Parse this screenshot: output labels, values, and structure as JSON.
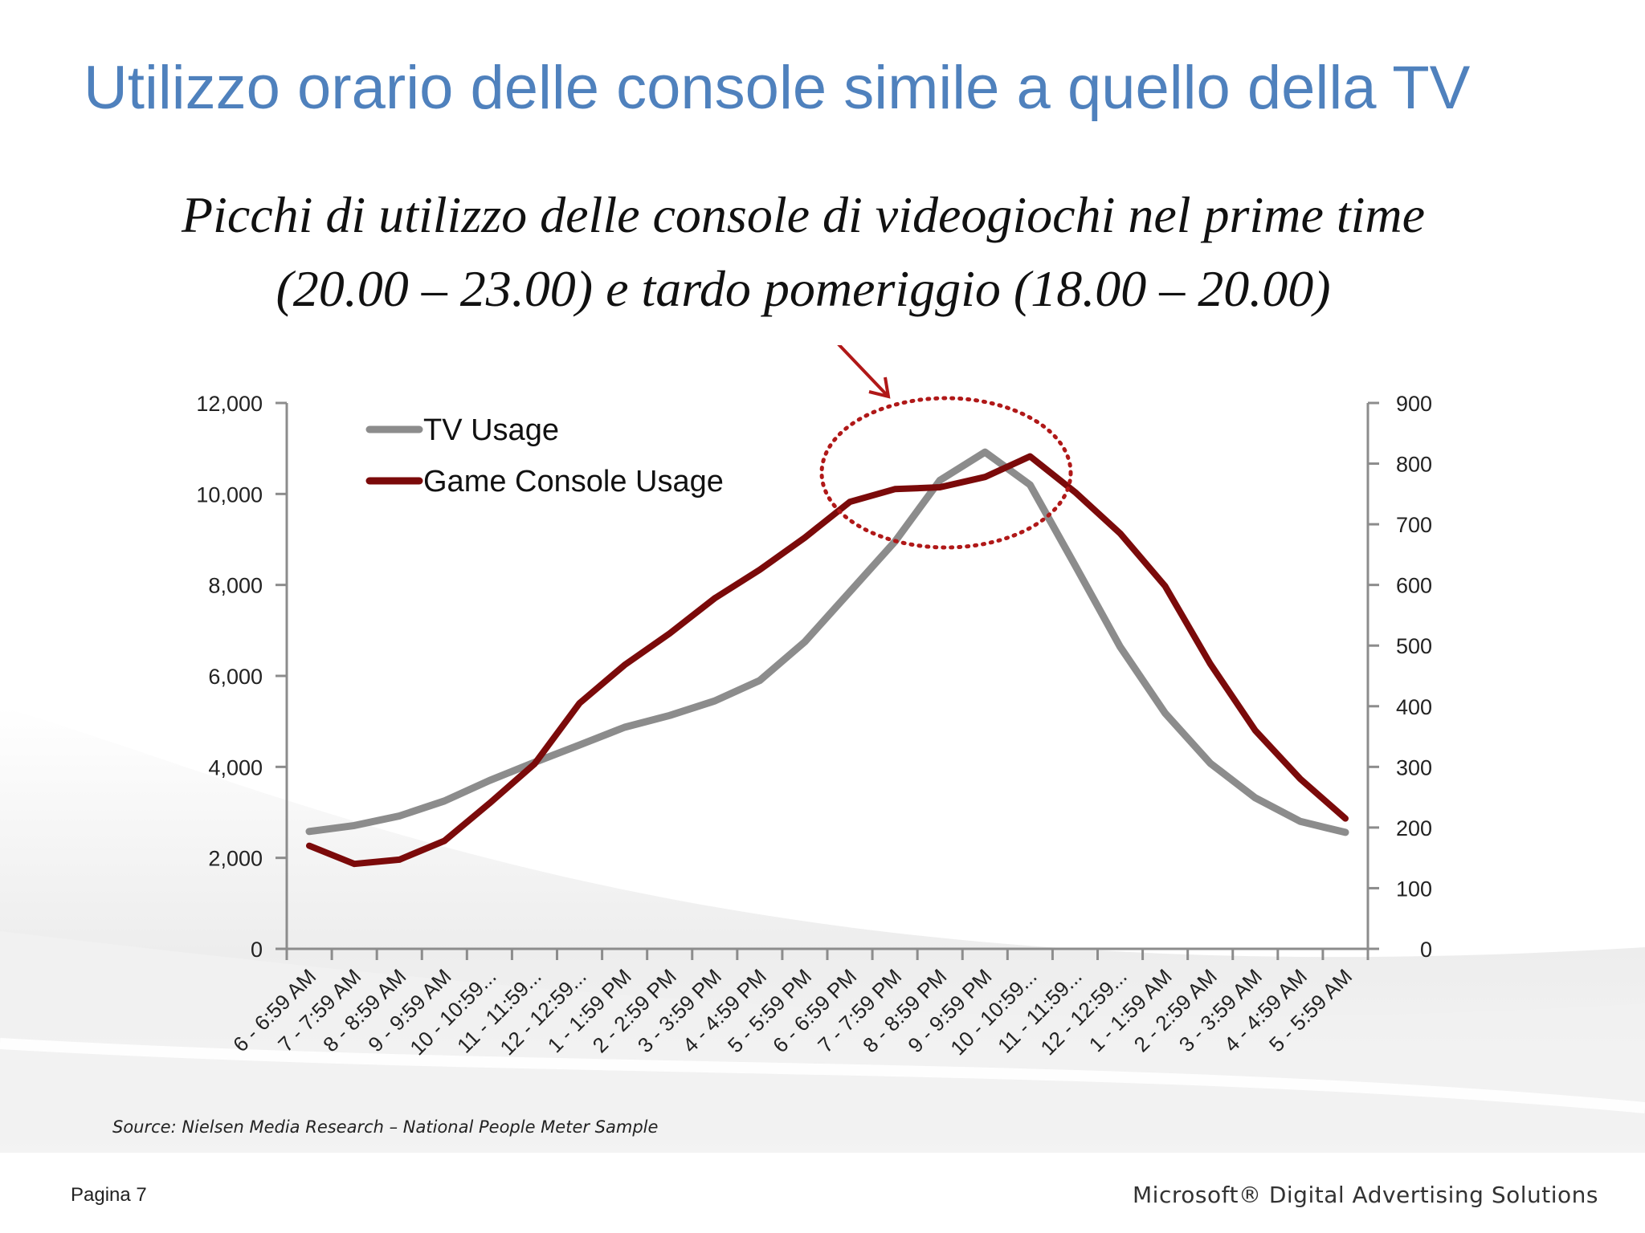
{
  "slide": {
    "title": "Utilizzo orario delle console simile a quello della TV",
    "subtitle_line1": "Picchi di utilizzo delle console di videogiochi nel prime time",
    "subtitle_line2": "(20.00 – 23.00) e tardo pomeriggio (18.00 – 20.00)",
    "source": "Source: Nielsen Media Research – National People Meter Sample",
    "page_label": "Pagina 7",
    "brand": "Microsoft® Digital Advertising Solutions"
  },
  "colors": {
    "title": "#4f81bd",
    "tv": "#8c8c8c",
    "console": "#7b0a0a",
    "highlight": "#b01818",
    "axis": "#8c8c8c"
  },
  "chart_data": {
    "type": "line",
    "categories": [
      "6 - 6:59 AM",
      "7 - 7:59 AM",
      "8 - 8:59 AM",
      "9 - 9:59 AM",
      "10 - 10:59...",
      "11 - 11:59...",
      "12 - 12:59...",
      "1 - 1:59 PM",
      "2 - 2:59 PM",
      "3 - 3:59 PM",
      "4 - 4:59 PM",
      "5 - 5:59 PM",
      "6 - 6:59 PM",
      "7 - 7:59 PM",
      "8 - 8:59 PM",
      "9 - 9:59 PM",
      "10 - 10:59...",
      "11 - 11:59...",
      "12 - 12:59...",
      "1 - 1:59 AM",
      "2 - 2:59 AM",
      "3 - 3:59 AM",
      "4 - 4:59 AM",
      "5 - 5:59 AM"
    ],
    "series": [
      {
        "name": "TV Usage",
        "axis": "left",
        "values": [
          2580,
          2710,
          2920,
          3250,
          3700,
          4100,
          4480,
          4870,
          5130,
          5450,
          5900,
          6750,
          7850,
          8950,
          10300,
          10920,
          10200,
          8430,
          6640,
          5180,
          4080,
          3320,
          2800,
          2560
        ]
      },
      {
        "name": "Game Console Usage",
        "axis": "right",
        "values": [
          170,
          140,
          147,
          178,
          240,
          305,
          405,
          468,
          520,
          578,
          625,
          678,
          737,
          758,
          761,
          778,
          812,
          753,
          685,
          598,
          470,
          360,
          280,
          215
        ]
      }
    ],
    "y_left": {
      "min": 0,
      "max": 12000,
      "ticks": [
        0,
        2000,
        4000,
        6000,
        8000,
        10000,
        12000
      ],
      "tick_labels": [
        "0",
        "2,000",
        "4,000",
        "6,000",
        "8,000",
        "10,000",
        "12,000"
      ]
    },
    "y_right": {
      "min": 0,
      "max": 900,
      "ticks": [
        0,
        100,
        200,
        300,
        400,
        500,
        600,
        700,
        800,
        900
      ],
      "tick_labels": [
        "0",
        "100",
        "200",
        "300",
        "400",
        "500",
        "600",
        "700",
        "800",
        "900"
      ]
    },
    "legend": {
      "placement": "top-left",
      "entries": [
        "TV Usage",
        "Game Console Usage"
      ]
    },
    "grid": false,
    "annotation": "dotted ellipse highlighting the prime-time peak with an arrow from the subtitle"
  }
}
